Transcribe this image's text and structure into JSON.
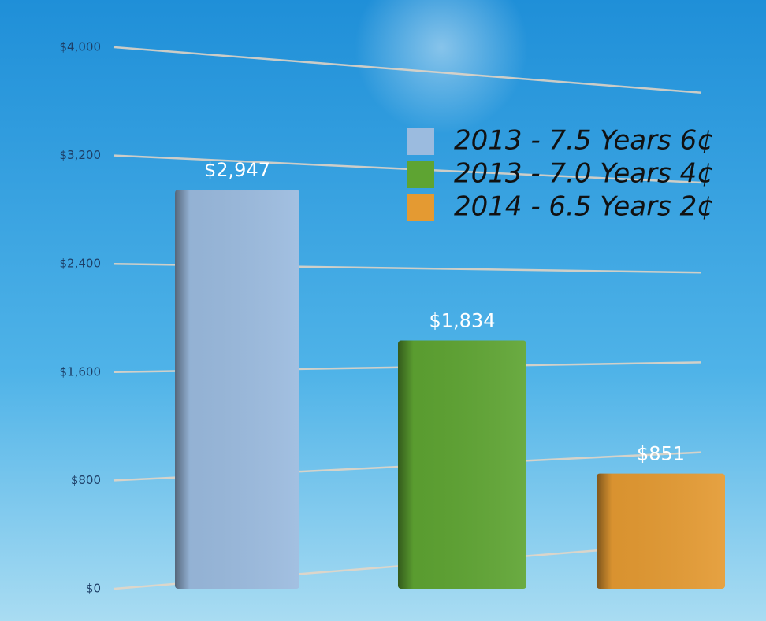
{
  "chart_data": {
    "type": "bar",
    "series": [
      {
        "name": "2013 - 7.5 Years 6¢",
        "color": "#9bbbdf",
        "values": [
          2947
        ],
        "value_labels": [
          "$2,947"
        ]
      },
      {
        "name": "2013 - 7.0 Years 4¢",
        "color": "#5ea432",
        "values": [
          1834
        ],
        "value_labels": [
          "$1,834"
        ]
      },
      {
        "name": "2014 - 6.5 Years 2¢",
        "color": "#e49a32",
        "values": [
          851
        ],
        "value_labels": [
          "$851"
        ]
      }
    ],
    "ylim": [
      0,
      4000
    ],
    "yticks": [
      {
        "value": 0,
        "label": "$0"
      },
      {
        "value": 800,
        "label": "$800"
      },
      {
        "value": 1600,
        "label": "$1,600"
      },
      {
        "value": 2400,
        "label": "$2,400"
      },
      {
        "value": 3200,
        "label": "$3,200"
      },
      {
        "value": 4000,
        "label": "$4,000"
      }
    ],
    "grid": true
  }
}
